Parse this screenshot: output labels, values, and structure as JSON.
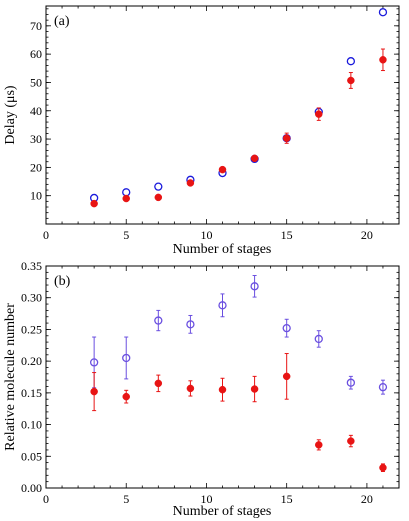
{
  "chart_data": [
    {
      "type": "scatter",
      "panel_label": "(a)",
      "xlabel": "Number of stages",
      "ylabel": "Delay (μs)",
      "xlim": [
        0,
        22
      ],
      "ylim": [
        0,
        77
      ],
      "xticks": [
        0,
        5,
        10,
        15,
        20
      ],
      "yticks": [
        10,
        20,
        30,
        40,
        50,
        60,
        70
      ],
      "series": [
        {
          "marker": "open-circle",
          "color": "#1a1adc",
          "points": [
            {
              "x": 3,
              "y": 9.2,
              "err": 0
            },
            {
              "x": 5,
              "y": 11.2,
              "err": 0
            },
            {
              "x": 7,
              "y": 13.2,
              "err": 0
            },
            {
              "x": 9,
              "y": 15.6,
              "err": 0
            },
            {
              "x": 11,
              "y": 18.0,
              "err": 0
            },
            {
              "x": 13,
              "y": 23.0,
              "err": 0
            },
            {
              "x": 15,
              "y": 30.3,
              "err": 0
            },
            {
              "x": 17,
              "y": 39.6,
              "err": 0
            },
            {
              "x": 19,
              "y": 57.5,
              "err": 0
            },
            {
              "x": 21,
              "y": 74.8,
              "err": 0
            }
          ]
        },
        {
          "marker": "filled-circle",
          "color": "#e81414",
          "points": [
            {
              "x": 3,
              "y": 7.2,
              "err": 0.8
            },
            {
              "x": 5,
              "y": 9.0,
              "err": 0.5
            },
            {
              "x": 7,
              "y": 9.4,
              "err": 0.5
            },
            {
              "x": 9,
              "y": 14.5,
              "err": 0.8
            },
            {
              "x": 11,
              "y": 19.2,
              "err": 0.8
            },
            {
              "x": 13,
              "y": 23.2,
              "err": 0.8
            },
            {
              "x": 15,
              "y": 30.3,
              "err": 1.8
            },
            {
              "x": 17,
              "y": 38.8,
              "err": 2.2
            },
            {
              "x": 19,
              "y": 50.7,
              "err": 2.8
            },
            {
              "x": 21,
              "y": 58.0,
              "err": 3.8
            }
          ]
        }
      ]
    },
    {
      "type": "scatter",
      "panel_label": "(b)",
      "xlabel": "Number of stages",
      "ylabel": "Relative molecule number",
      "xlim": [
        0,
        22
      ],
      "ylim": [
        0,
        0.35
      ],
      "xticks": [
        0,
        5,
        10,
        15,
        20
      ],
      "yticks": [
        0.0,
        0.05,
        0.1,
        0.15,
        0.2,
        0.25,
        0.3,
        0.35
      ],
      "series": [
        {
          "marker": "open-circle",
          "color": "#6a4fe0",
          "points": [
            {
              "x": 3,
              "y": 0.198,
              "err": 0.04
            },
            {
              "x": 5,
              "y": 0.205,
              "err": 0.033
            },
            {
              "x": 7,
              "y": 0.264,
              "err": 0.016
            },
            {
              "x": 9,
              "y": 0.258,
              "err": 0.014
            },
            {
              "x": 11,
              "y": 0.288,
              "err": 0.018
            },
            {
              "x": 13,
              "y": 0.318,
              "err": 0.017
            },
            {
              "x": 15,
              "y": 0.252,
              "err": 0.014
            },
            {
              "x": 17,
              "y": 0.235,
              "err": 0.013
            },
            {
              "x": 19,
              "y": 0.166,
              "err": 0.01
            },
            {
              "x": 21,
              "y": 0.159,
              "err": 0.011
            }
          ]
        },
        {
          "marker": "filled-circle",
          "color": "#e81414",
          "points": [
            {
              "x": 3,
              "y": 0.152,
              "err": 0.03
            },
            {
              "x": 5,
              "y": 0.144,
              "err": 0.01
            },
            {
              "x": 7,
              "y": 0.165,
              "err": 0.013
            },
            {
              "x": 9,
              "y": 0.157,
              "err": 0.012
            },
            {
              "x": 11,
              "y": 0.155,
              "err": 0.018
            },
            {
              "x": 13,
              "y": 0.156,
              "err": 0.02
            },
            {
              "x": 15,
              "y": 0.176,
              "err": 0.036
            },
            {
              "x": 17,
              "y": 0.068,
              "err": 0.008
            },
            {
              "x": 19,
              "y": 0.074,
              "err": 0.009
            },
            {
              "x": 21,
              "y": 0.032,
              "err": 0.006
            }
          ]
        }
      ]
    }
  ]
}
